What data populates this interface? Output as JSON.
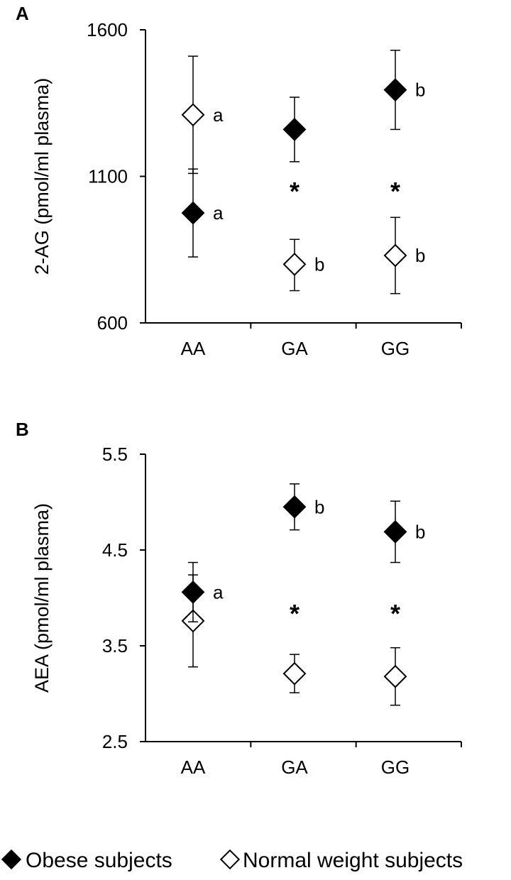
{
  "chart_data": [
    {
      "type": "scatter",
      "panel": "A",
      "categories": [
        "AA",
        "GA",
        "GG"
      ],
      "ylabel": "2-AG (pmol/ml plasma)",
      "ylim": [
        600,
        1600
      ],
      "yticks": [
        "600",
        "1100",
        "1600"
      ],
      "series": [
        {
          "name": "Obese subjects",
          "values": [
            975,
            1260,
            1395
          ],
          "err_low": [
            825,
            1150,
            1260
          ],
          "err_high": [
            1125,
            1370,
            1530
          ],
          "labels": [
            "a",
            "",
            "b"
          ]
        },
        {
          "name": "Normal weight subjects",
          "values": [
            1310,
            800,
            830
          ],
          "err_low": [
            1110,
            710,
            700
          ],
          "err_high": [
            1510,
            885,
            960
          ],
          "labels": [
            "a",
            "b",
            "b"
          ]
        }
      ],
      "significance": [
        "",
        "*",
        "*"
      ]
    },
    {
      "type": "scatter",
      "panel": "B",
      "categories": [
        "AA",
        "GA",
        "GG"
      ],
      "ylabel": "AEA (pmol/ml plasma)",
      "ylim": [
        2.5,
        5.5
      ],
      "yticks": [
        "2.5",
        "3.5",
        "4.5",
        "5.5"
      ],
      "series": [
        {
          "name": "Obese subjects",
          "values": [
            4.06,
            4.95,
            4.69
          ],
          "err_low": [
            3.75,
            4.71,
            4.37
          ],
          "err_high": [
            4.37,
            5.19,
            5.01
          ],
          "labels": [
            "a",
            "b",
            "b"
          ]
        },
        {
          "name": "Normal weight subjects",
          "values": [
            3.76,
            3.21,
            3.18
          ],
          "err_low": [
            3.28,
            3.01,
            2.88
          ],
          "err_high": [
            4.24,
            3.41,
            3.48
          ],
          "labels": [
            "",
            "",
            ""
          ]
        }
      ],
      "significance": [
        "",
        "*",
        "*"
      ]
    }
  ],
  "legend": {
    "obese_label": "Obese subjects",
    "normal_label": "Normal weight subjects"
  }
}
